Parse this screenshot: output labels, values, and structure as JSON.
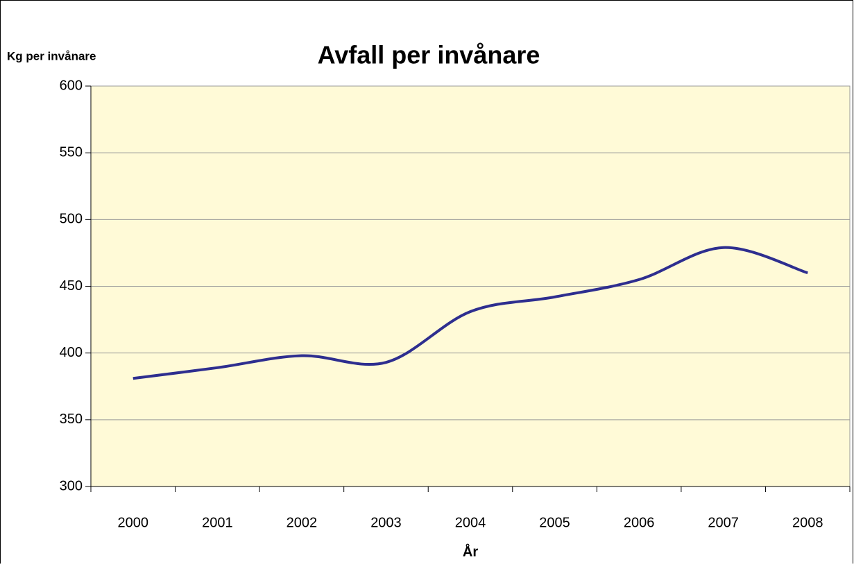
{
  "chart_data": {
    "type": "line",
    "title": "Avfall per invånare",
    "y_label": "Kg per invånare",
    "x_label": "År",
    "categories": [
      "2000",
      "2001",
      "2002",
      "2003",
      "2004",
      "2005",
      "2006",
      "2007",
      "2008"
    ],
    "series": [
      {
        "name": "Avfall",
        "color": "#2e2e8f",
        "values": [
          381,
          389,
          398,
          393,
          431,
          442,
          455,
          479,
          460
        ]
      }
    ],
    "ylim": [
      300,
      600
    ],
    "yticks": [
      300,
      350,
      400,
      450,
      500,
      550,
      600
    ],
    "grid": true,
    "smooth": true
  }
}
